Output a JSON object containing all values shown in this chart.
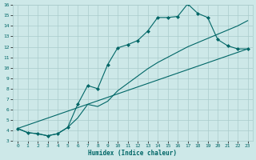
{
  "xlabel": "Humidex (Indice chaleur)",
  "bg_color": "#cde8e8",
  "grid_color": "#aacccc",
  "line_color": "#006666",
  "xlim": [
    0,
    23
  ],
  "ylim": [
    3,
    16
  ],
  "xticks": [
    0,
    1,
    2,
    3,
    4,
    5,
    6,
    7,
    8,
    9,
    10,
    11,
    12,
    13,
    14,
    15,
    16,
    17,
    18,
    19,
    20,
    21,
    22,
    23
  ],
  "yticks": [
    3,
    4,
    5,
    6,
    7,
    8,
    9,
    10,
    11,
    12,
    13,
    14,
    15,
    16
  ],
  "line1_x": [
    0,
    1,
    2,
    3,
    4,
    5,
    6,
    7,
    8,
    9,
    10,
    11,
    12,
    13,
    14,
    15,
    16,
    17,
    18,
    19,
    20,
    21,
    22,
    23
  ],
  "line1_y": [
    4.2,
    3.8,
    3.7,
    3.5,
    3.7,
    4.3,
    6.5,
    8.3,
    8.0,
    10.3,
    11.9,
    12.2,
    12.6,
    13.5,
    14.8,
    14.8,
    14.9,
    16.1,
    15.2,
    14.8,
    12.7,
    12.1,
    11.8,
    11.8
  ],
  "line2_x": [
    0,
    23
  ],
  "line2_y": [
    4.2,
    11.8
  ],
  "line3_x": [
    0,
    1,
    2,
    3,
    4,
    5,
    6,
    7,
    8,
    9,
    10,
    11,
    12,
    13,
    14,
    15,
    16,
    17,
    18,
    19,
    20,
    21,
    22,
    23
  ],
  "line3_y": [
    4.2,
    3.8,
    3.7,
    3.5,
    3.7,
    4.3,
    5.2,
    6.5,
    6.3,
    6.8,
    7.8,
    8.5,
    9.2,
    9.9,
    10.5,
    11.0,
    11.5,
    12.0,
    12.4,
    12.8,
    13.2,
    13.6,
    14.0,
    14.5
  ]
}
